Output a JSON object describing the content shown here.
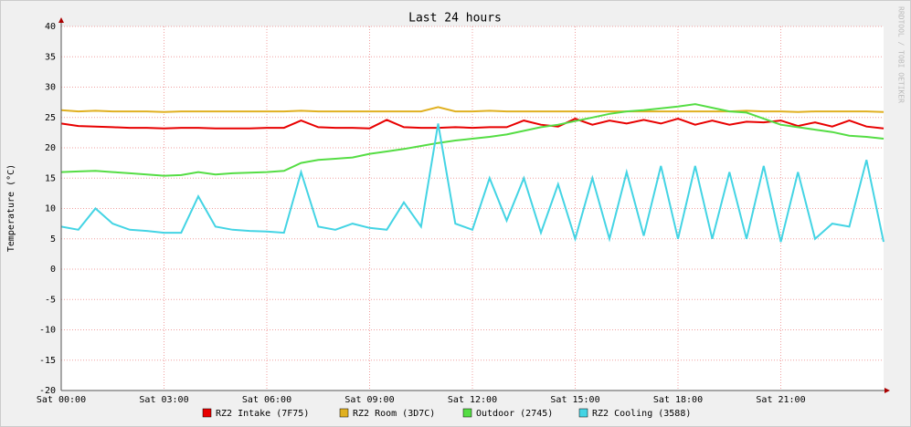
{
  "chart_data": {
    "type": "line",
    "title": "Last 24 hours",
    "y_label": "Temperature (°C)",
    "watermark": "RRDTOOL / TOBI OETIKER",
    "x": [
      0,
      0.5,
      1,
      1.5,
      2,
      2.5,
      3,
      3.5,
      4,
      4.5,
      5,
      5.5,
      6,
      6.5,
      7,
      7.5,
      8,
      8.5,
      9,
      9.5,
      10,
      10.5,
      11,
      11.5,
      12,
      12.5,
      13,
      13.5,
      14,
      14.5,
      15,
      15.5,
      16,
      16.5,
      17,
      17.5,
      18,
      18.5,
      19,
      19.5,
      20,
      20.5,
      21,
      21.5,
      22,
      22.5,
      23,
      23.5,
      24
    ],
    "xlim": [
      0,
      24
    ],
    "xticks": [
      {
        "value": 0,
        "label": "Sat 00:00"
      },
      {
        "value": 3,
        "label": "Sat 03:00"
      },
      {
        "value": 6,
        "label": "Sat 06:00"
      },
      {
        "value": 9,
        "label": "Sat 09:00"
      },
      {
        "value": 12,
        "label": "Sat 12:00"
      },
      {
        "value": 15,
        "label": "Sat 15:00"
      },
      {
        "value": 18,
        "label": "Sat 18:00"
      },
      {
        "value": 21,
        "label": "Sat 21:00"
      }
    ],
    "ylim": [
      -20,
      40
    ],
    "yticks": [
      -20,
      -15,
      -10,
      -5,
      0,
      5,
      10,
      15,
      20,
      25,
      30,
      35,
      40
    ],
    "grid": true,
    "legend": "bottom",
    "series": [
      {
        "name": "RZ2 Intake (7F75)",
        "color": "#e80000",
        "values": [
          24,
          23.6,
          23.5,
          23.4,
          23.3,
          23.3,
          23.2,
          23.3,
          23.3,
          23.2,
          23.2,
          23.2,
          23.3,
          23.3,
          24.5,
          23.4,
          23.3,
          23.3,
          23.2,
          24.6,
          23.4,
          23.3,
          23.3,
          23.4,
          23.3,
          23.4,
          23.4,
          24.5,
          23.8,
          23.5,
          24.8,
          23.8,
          24.5,
          24,
          24.6,
          24,
          24.8,
          23.8,
          24.5,
          23.8,
          24.3,
          24.2,
          24.5,
          23.6,
          24.2,
          23.5,
          24.5,
          23.5,
          23.2
        ]
      },
      {
        "name": "RZ2 Room (3D7C)",
        "color": "#e0b020",
        "values": [
          26.2,
          26,
          26.1,
          26,
          26,
          26,
          25.9,
          26,
          26,
          26,
          26,
          26,
          26,
          26,
          26.1,
          26,
          26,
          26,
          26,
          26,
          26,
          26,
          26.7,
          26,
          26,
          26.1,
          26,
          26,
          26,
          26,
          26,
          26,
          26,
          26,
          26,
          26,
          26,
          26,
          26,
          26,
          26.1,
          26,
          26,
          25.9,
          26,
          26,
          26,
          26,
          25.9
        ]
      },
      {
        "name": "Outdoor (2745)",
        "color": "#55dd44",
        "values": [
          16,
          16.1,
          16.2,
          16,
          15.8,
          15.6,
          15.4,
          15.5,
          16,
          15.6,
          15.8,
          15.9,
          16,
          16.2,
          17.5,
          18,
          18.2,
          18.4,
          19,
          19.4,
          19.8,
          20.3,
          20.8,
          21.2,
          21.5,
          21.8,
          22.2,
          22.8,
          23.4,
          23.8,
          24.4,
          25,
          25.6,
          26,
          26.2,
          26.5,
          26.8,
          27.2,
          26.6,
          26,
          25.8,
          24.8,
          23.8,
          23.4,
          23,
          22.6,
          22,
          21.8,
          21.5
        ]
      },
      {
        "name": "RZ2 Cooling (3588)",
        "color": "#44d4e4",
        "values": [
          7,
          6.5,
          10,
          7.5,
          6.5,
          6.3,
          6,
          6,
          12,
          7,
          6.5,
          6.3,
          6.2,
          6,
          16,
          7,
          6.5,
          7.5,
          6.8,
          6.5,
          11,
          7,
          24,
          7.5,
          6.5,
          15,
          8,
          15,
          6,
          14,
          5,
          15,
          5,
          16,
          5.5,
          17,
          5,
          17,
          5,
          16,
          5,
          17,
          4.5,
          16,
          5,
          7.5,
          7,
          18,
          4.5
        ]
      }
    ]
  }
}
